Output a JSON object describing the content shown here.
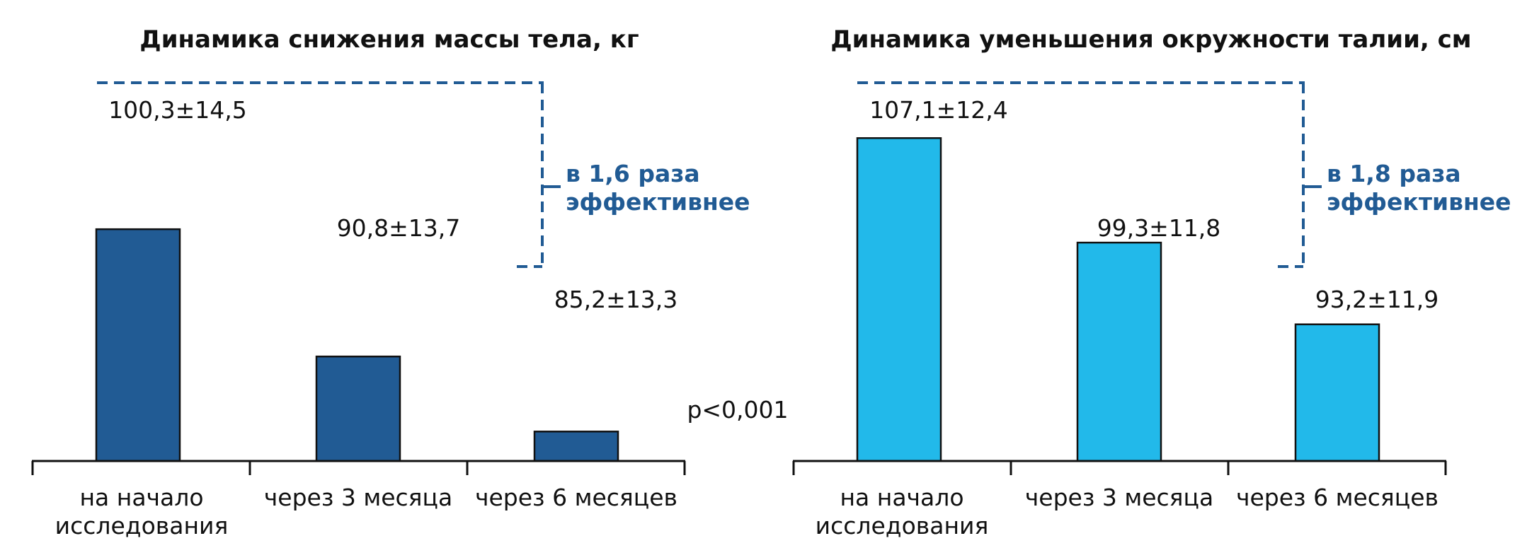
{
  "chart_data": [
    {
      "type": "bar",
      "title": "Динамика снижения массы тела, кг",
      "categories": [
        [
          "на начало",
          "исследования"
        ],
        [
          "через 3 месяца"
        ],
        [
          "через 6 месяцев"
        ]
      ],
      "values": [
        100.3,
        90.8,
        85.2
      ],
      "value_labels": [
        "100,3±14,5",
        "90,8±13,7",
        "85,2±13,3"
      ],
      "bar_color": "#215b94",
      "bracket_text": [
        "в 1,6 раза",
        "эффективнее"
      ],
      "grid": false
    },
    {
      "type": "bar",
      "title": "Динамика уменьшения окружности талии, см",
      "categories": [
        [
          "на начало",
          "исследования"
        ],
        [
          "через 3 месяца"
        ],
        [
          "через 6 месяцев"
        ]
      ],
      "values": [
        107.1,
        99.3,
        93.2
      ],
      "value_labels": [
        "107,1±12,4",
        "99,3±11,8",
        "93,2±11,9"
      ],
      "bar_color": "#22b9ea",
      "bracket_text": [
        "в 1,8 раза",
        "эффективнее"
      ],
      "grid": false
    }
  ],
  "p_value": "p<0,001",
  "colors": {
    "accent_text": "#215b94",
    "bracket_line": "#215b94"
  }
}
